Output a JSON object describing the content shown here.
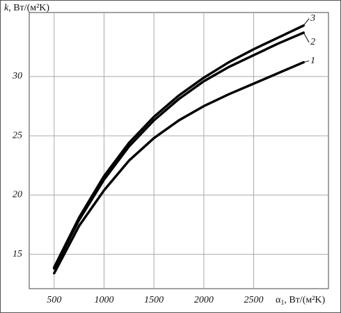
{
  "chart_data": {
    "type": "line",
    "y_label": {
      "symbol": "k",
      "unit": ", Вт/(м²K)"
    },
    "x_label": {
      "symbol": "α",
      "subscript": "1",
      "unit": ", Вт/(м²K)"
    },
    "x": [
      500,
      750,
      1000,
      1250,
      1500,
      1750,
      2000,
      2250,
      2500,
      2750,
      3000
    ],
    "series": [
      {
        "name": "1",
        "color": "#000000",
        "values": [
          13.4,
          17.4,
          20.4,
          22.9,
          24.8,
          26.3,
          27.5,
          28.5,
          29.4,
          30.3,
          31.2
        ]
      },
      {
        "name": "2",
        "color": "#000000",
        "values": [
          13.8,
          17.9,
          21.3,
          24.1,
          26.3,
          28.1,
          29.6,
          30.8,
          31.8,
          32.8,
          33.7
        ]
      },
      {
        "name": "3",
        "color": "#000000",
        "values": [
          13.9,
          18.1,
          21.6,
          24.4,
          26.6,
          28.4,
          29.9,
          31.2,
          32.3,
          33.3,
          34.3
        ]
      }
    ],
    "xlim": [
      250,
      3250
    ],
    "xticks": [
      500,
      1000,
      1500,
      2000,
      2500
    ],
    "ylim": [
      12.1,
      35.4
    ],
    "yticks": [
      15,
      20,
      25,
      30
    ],
    "grid": true
  }
}
